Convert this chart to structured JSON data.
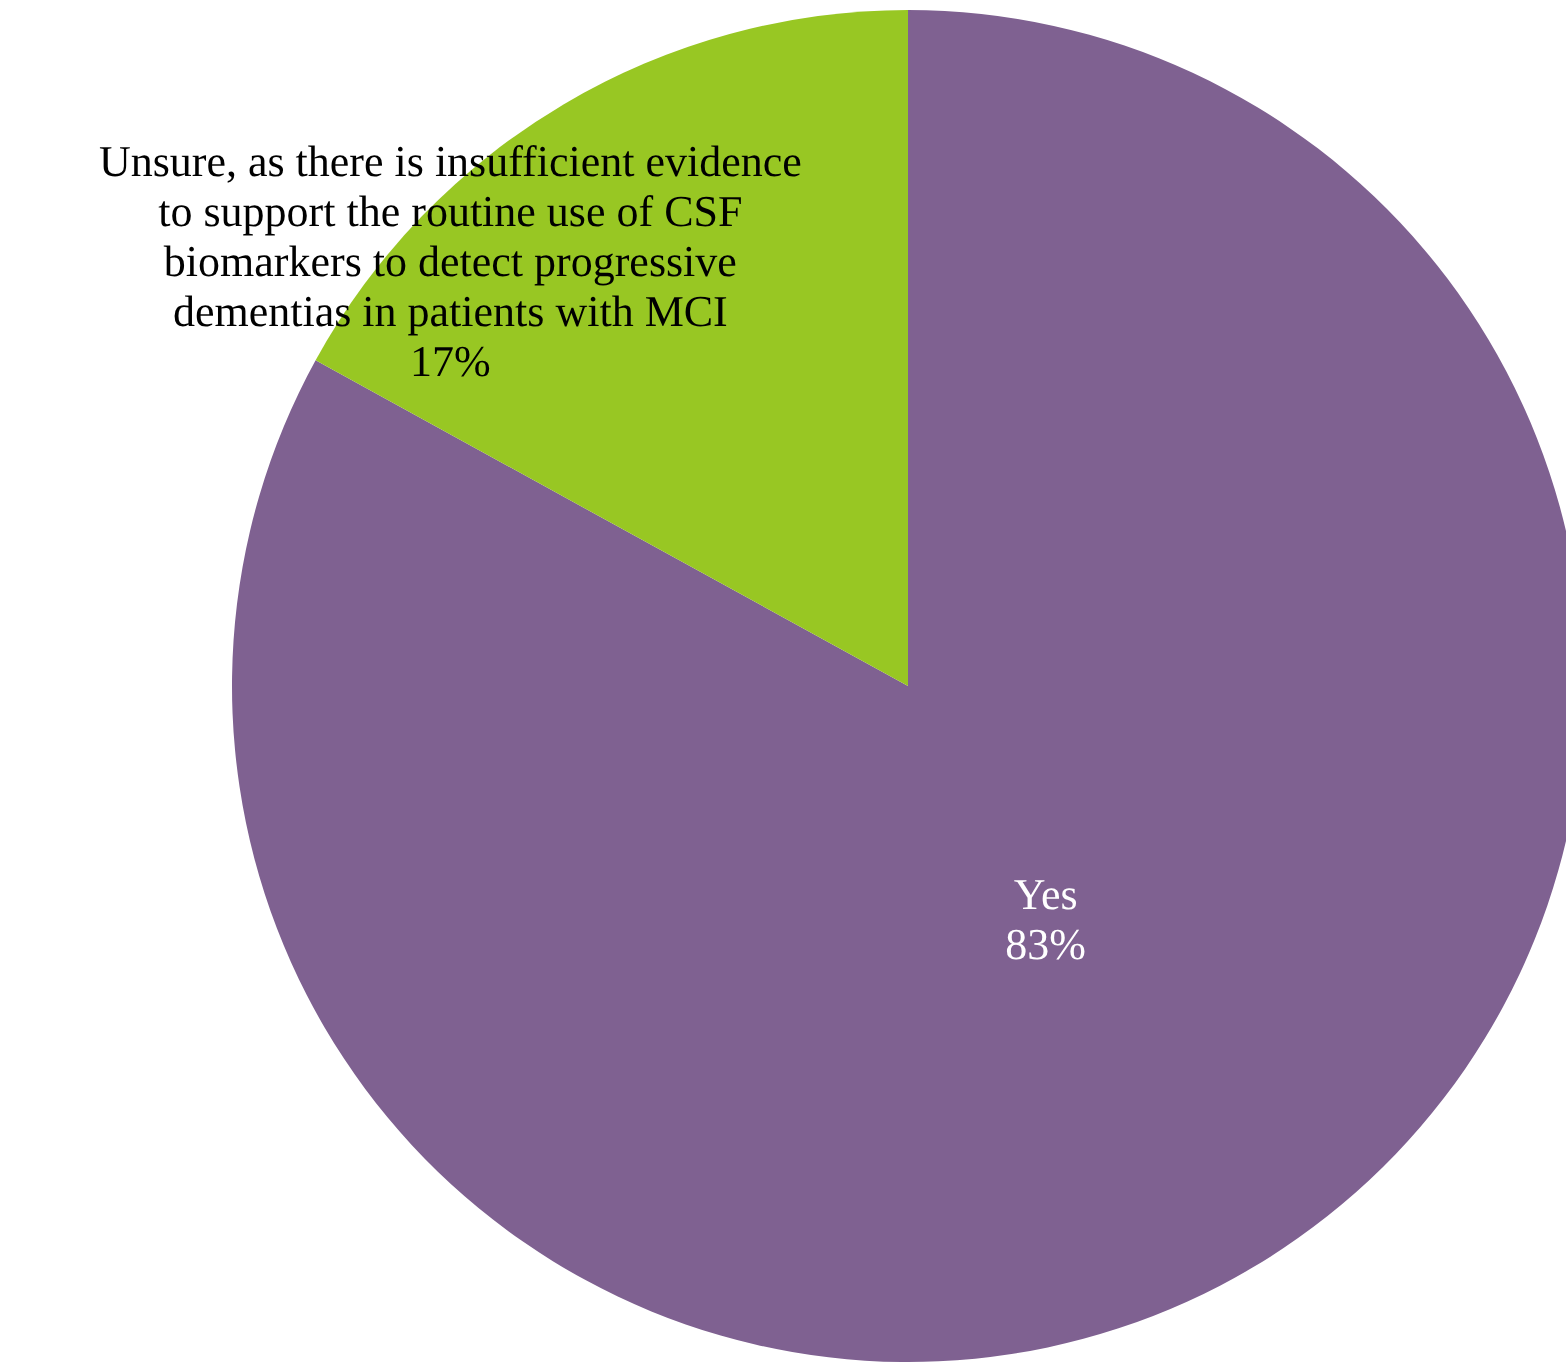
{
  "chart_data": {
    "type": "pie",
    "categories": [
      "Yes",
      "Unsure, as there is insufficient evidence to support the routine use of CSF biomarkers to detect progressive dementias in patients with MCI"
    ],
    "values": [
      83,
      17
    ],
    "colors": [
      "#7f6191",
      "#98c723"
    ],
    "value_labels": [
      "83%",
      "17%"
    ]
  }
}
